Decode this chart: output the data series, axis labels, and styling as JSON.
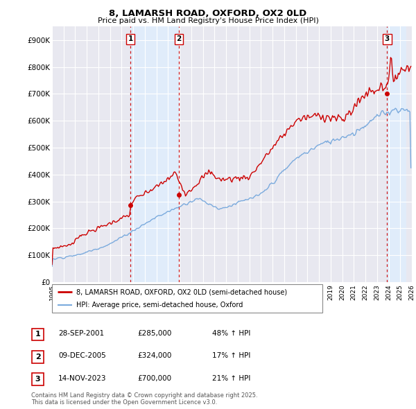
{
  "title_line1": "8, LAMARSH ROAD, OXFORD, OX2 0LD",
  "title_line2": "Price paid vs. HM Land Registry's House Price Index (HPI)",
  "background_color": "#ffffff",
  "plot_bg_color": "#e8e8f0",
  "grid_color": "#ffffff",
  "red_line_color": "#cc0000",
  "blue_line_color": "#7aaadd",
  "vline_color": "#cc0000",
  "shade_color": "#ddeeff",
  "xmin": 1995,
  "xmax": 2026,
  "ymin": 0,
  "ymax": 950000,
  "yticks": [
    0,
    100000,
    200000,
    300000,
    400000,
    500000,
    600000,
    700000,
    800000,
    900000
  ],
  "ytick_labels": [
    "£0",
    "£100K",
    "£200K",
    "£300K",
    "£400K",
    "£500K",
    "£600K",
    "£700K",
    "£800K",
    "£900K"
  ],
  "sale_dates": [
    2001.75,
    2005.92,
    2023.87
  ],
  "sale_prices": [
    285000,
    324000,
    700000
  ],
  "sale_labels": [
    "1",
    "2",
    "3"
  ],
  "legend_entries": [
    {
      "label": "8, LAMARSH ROAD, OXFORD, OX2 0LD (semi-detached house)",
      "color": "#cc0000",
      "lw": 2
    },
    {
      "label": "HPI: Average price, semi-detached house, Oxford",
      "color": "#7aaadd",
      "lw": 1.5
    }
  ],
  "table_rows": [
    {
      "num": "1",
      "date": "28-SEP-2001",
      "price": "£285,000",
      "change": "48% ↑ HPI"
    },
    {
      "num": "2",
      "date": "09-DEC-2005",
      "price": "£324,000",
      "change": "17% ↑ HPI"
    },
    {
      "num": "3",
      "date": "14-NOV-2023",
      "price": "£700,000",
      "change": "21% ↑ HPI"
    }
  ],
  "footer": "Contains HM Land Registry data © Crown copyright and database right 2025.\nThis data is licensed under the Open Government Licence v3.0."
}
